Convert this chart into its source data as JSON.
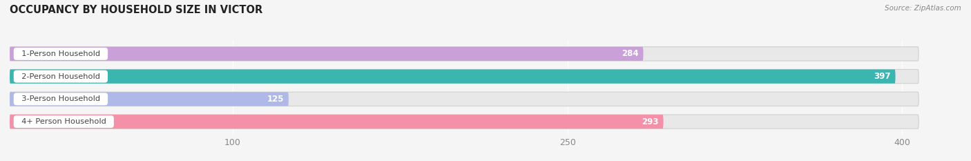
{
  "title": "OCCUPANCY BY HOUSEHOLD SIZE IN VICTOR",
  "source": "Source: ZipAtlas.com",
  "categories": [
    "1-Person Household",
    "2-Person Household",
    "3-Person Household",
    "4+ Person Household"
  ],
  "values": [
    284,
    397,
    125,
    293
  ],
  "bar_colors": [
    "#c9a0d8",
    "#3ab5b0",
    "#b0b8e8",
    "#f490a8"
  ],
  "bg_color": "#f5f5f5",
  "bar_track_color": "#e8e8e8",
  "bar_track_border": "#d0d0d0",
  "label_bg_color": "#ffffff",
  "value_label_color": "#ffffff",
  "xtick_color": "#888888",
  "xticks": [
    100,
    250,
    400
  ],
  "xmax": 420,
  "title_fontsize": 10.5,
  "source_fontsize": 7.5,
  "bar_height": 0.62,
  "figsize": [
    14.06,
    2.33
  ],
  "dpi": 100
}
